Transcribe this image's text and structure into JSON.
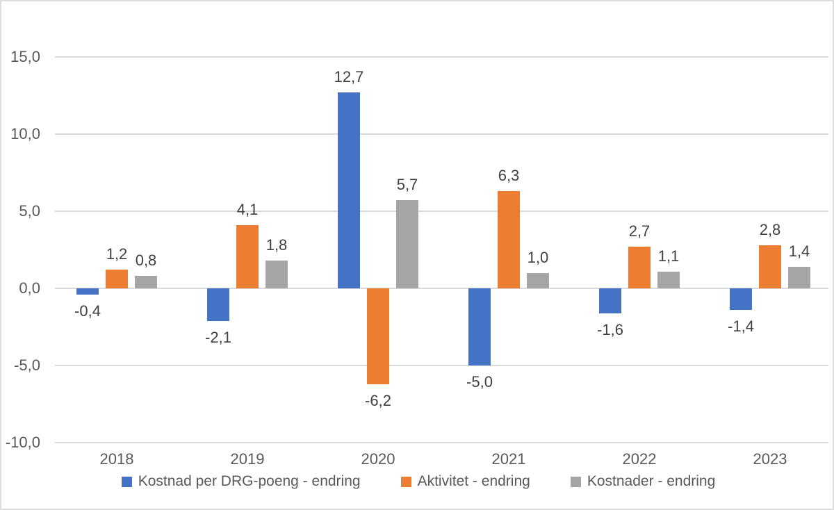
{
  "chart_data": {
    "type": "bar",
    "title": "",
    "xlabel": "",
    "ylabel": "",
    "categories": [
      "2018",
      "2019",
      "2020",
      "2021",
      "2022",
      "2023"
    ],
    "series": [
      {
        "name": "Kostnad per DRG-poeng - endring",
        "color": "#4472C4",
        "values": [
          -0.4,
          -2.1,
          12.7,
          -5.0,
          -1.6,
          -1.4
        ]
      },
      {
        "name": "Aktivitet - endring",
        "color": "#ED7D31",
        "values": [
          1.2,
          4.1,
          -6.2,
          6.3,
          2.7,
          2.8
        ]
      },
      {
        "name": "Kostnader - endring",
        "color": "#A5A5A5",
        "values": [
          0.8,
          1.8,
          5.7,
          1.0,
          1.1,
          1.4
        ]
      }
    ],
    "y_ticks": [
      15.0,
      10.0,
      5.0,
      0.0,
      -5.0,
      -10.0
    ],
    "y_tick_labels": [
      "15,0",
      "10,0",
      "5,0",
      "0,0",
      "-5,0",
      "-10,0"
    ],
    "ylim": [
      -10.0,
      15.0
    ],
    "grid": true,
    "legend_position": "bottom",
    "decimal_separator": ",",
    "data_labels_visible": true,
    "colors": {
      "gridline": "#d9d9d9",
      "axis_text": "#595959",
      "value_label_text": "#404040",
      "background": "#ffffff"
    }
  }
}
